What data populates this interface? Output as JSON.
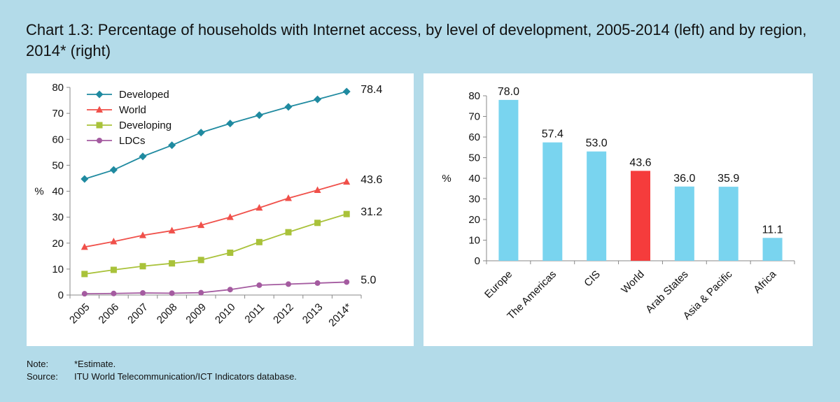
{
  "title": "Chart 1.3: Percentage of households with Internet access, by level of development, 2005-2014 (left) and by region, 2014* (right)",
  "notes": {
    "note_label": "Note:",
    "note_text": "*Estimate.",
    "source_label": "Source:",
    "source_text": "ITU World Telecommunication/ICT Indicators database."
  },
  "colors": {
    "background": "#b3dbe9",
    "developed": "#1f8aa0",
    "world": "#f0504a",
    "developing": "#a9c23a",
    "ldcs": "#a45ba0",
    "bar_region": "#79d4ef",
    "bar_world": "#f53c3c"
  },
  "chart_data": [
    {
      "type": "line",
      "title": "",
      "xlabel": "",
      "ylabel": "%",
      "ylim": [
        0,
        80
      ],
      "yticks": [
        0,
        10,
        20,
        30,
        40,
        50,
        60,
        70,
        80
      ],
      "legend_position": "top-left",
      "grid": false,
      "x": [
        "2005",
        "2006",
        "2007",
        "2008",
        "2009",
        "2010",
        "2011",
        "2012",
        "2013",
        "2014*"
      ],
      "series": [
        {
          "name": "Developed",
          "color": "#1f8aa0",
          "marker": "diamond",
          "values": [
            44.7,
            48.2,
            53.4,
            57.7,
            62.6,
            66.1,
            69.3,
            72.5,
            75.4,
            78.4
          ],
          "end_label": "78.4"
        },
        {
          "name": "World",
          "color": "#f0504a",
          "marker": "triangle",
          "values": [
            18.5,
            20.6,
            23.0,
            24.8,
            26.9,
            30.0,
            33.6,
            37.3,
            40.4,
            43.6
          ],
          "end_label": "43.6"
        },
        {
          "name": "Developing",
          "color": "#a9c23a",
          "marker": "square",
          "values": [
            8.1,
            9.7,
            11.1,
            12.2,
            13.5,
            16.3,
            20.4,
            24.2,
            27.8,
            31.2
          ],
          "end_label": "31.2"
        },
        {
          "name": "LDCs",
          "color": "#a45ba0",
          "marker": "circle",
          "values": [
            0.5,
            0.6,
            0.8,
            0.7,
            0.9,
            2.1,
            3.8,
            4.2,
            4.6,
            5.0
          ],
          "end_label": "5.0"
        }
      ]
    },
    {
      "type": "bar",
      "title": "",
      "xlabel": "",
      "ylabel": "%",
      "ylim": [
        0,
        80
      ],
      "yticks": [
        0,
        10,
        20,
        30,
        40,
        50,
        60,
        70,
        80
      ],
      "grid": false,
      "categories": [
        "Europe",
        "The Americas",
        "CIS",
        "World",
        "Arab States",
        "Asia & Pacific",
        "Africa"
      ],
      "values": [
        78.0,
        57.4,
        53.0,
        43.6,
        36.0,
        35.9,
        11.1
      ],
      "labels": [
        "78.0",
        "57.4",
        "53.0",
        "43.6",
        "36.0",
        "35.9",
        "11.1"
      ],
      "highlight": "World"
    }
  ]
}
